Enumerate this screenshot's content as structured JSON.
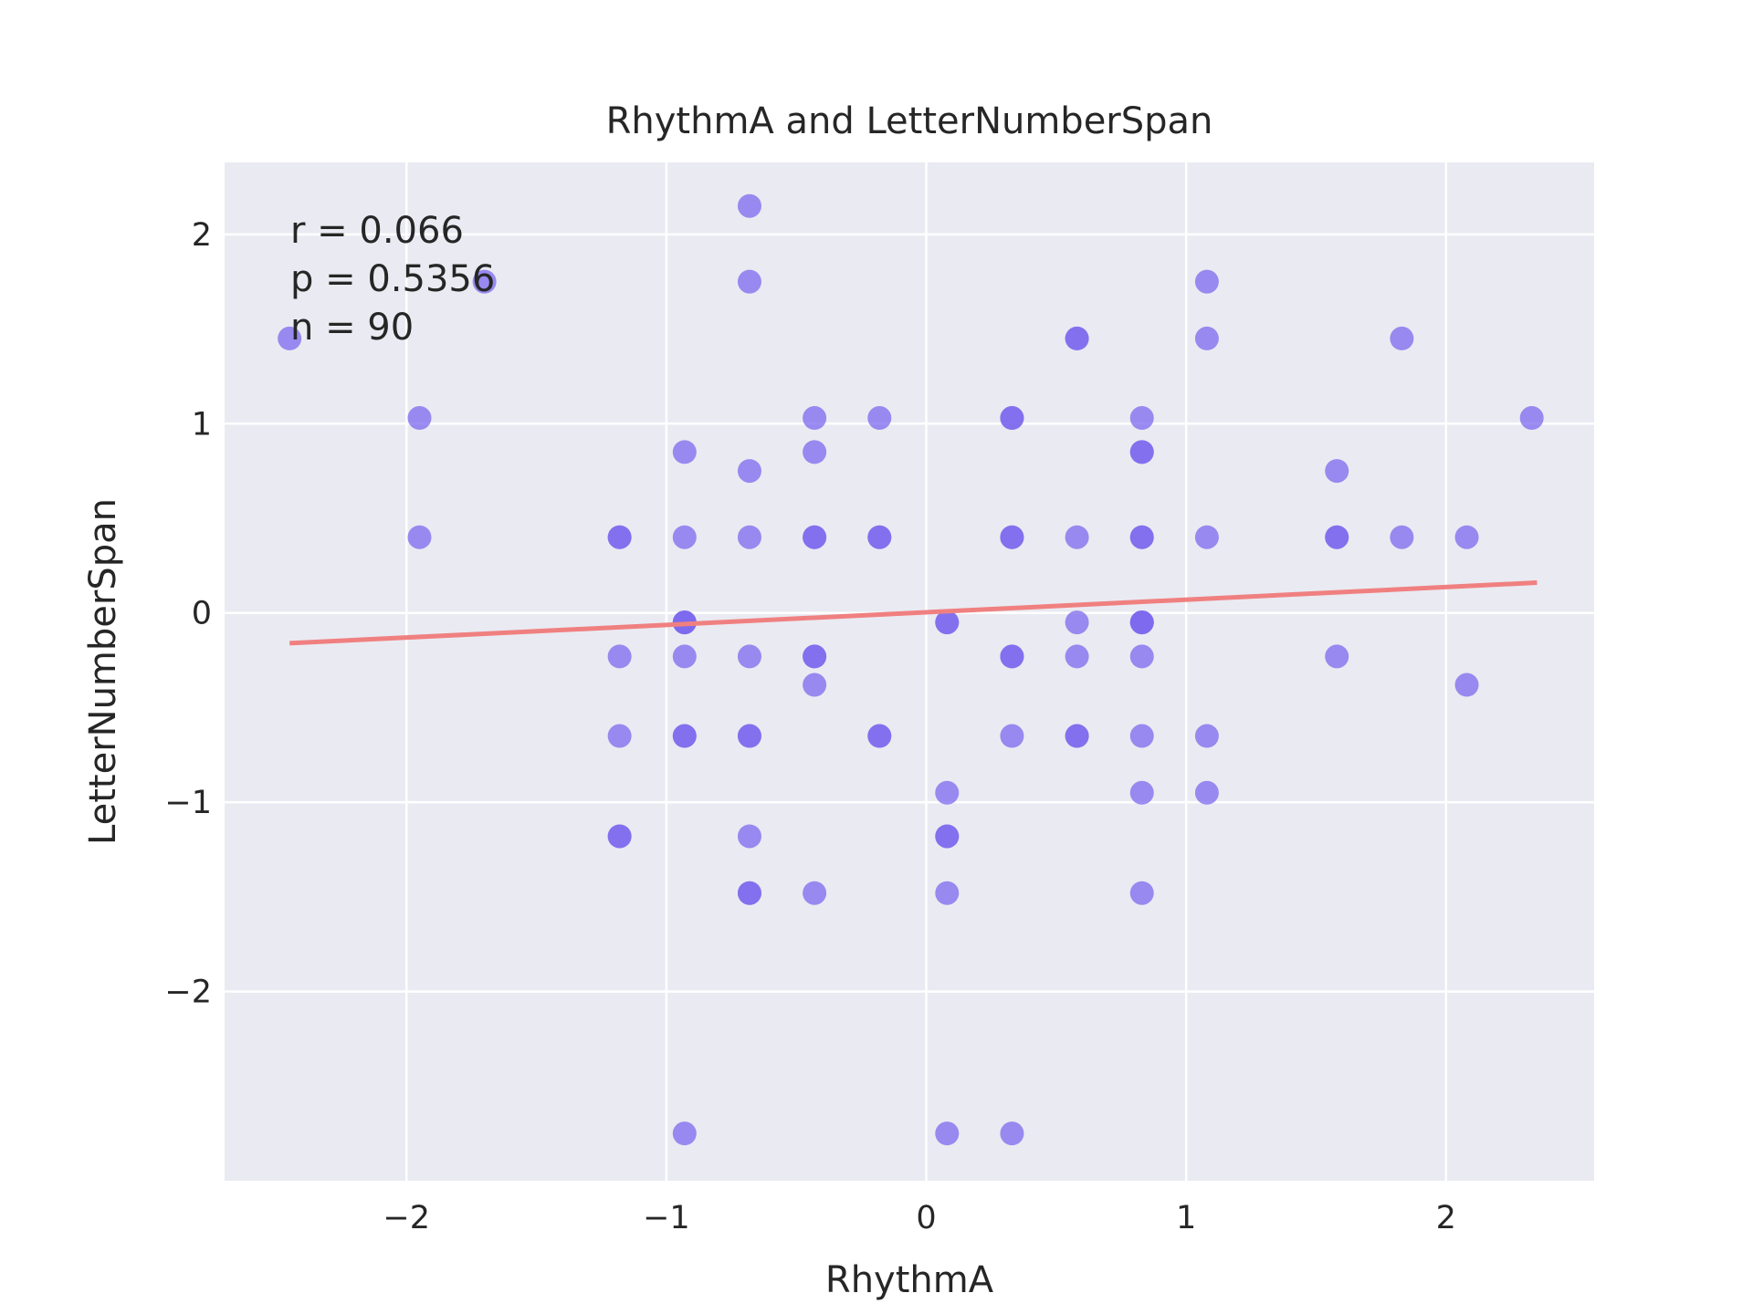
{
  "chart_data": {
    "type": "scatter",
    "title": "RhythmA and LetterNumberSpan",
    "xlabel": "RhythmA",
    "ylabel": "LetterNumberSpan",
    "xlim": [
      -2.7,
      2.57
    ],
    "ylim": [
      -3.0,
      2.38
    ],
    "xticks": [
      -2,
      -1,
      0,
      1,
      2
    ],
    "yticks": [
      -2,
      -1,
      0,
      1,
      2
    ],
    "xtick_labels": [
      "−2",
      "−1",
      "0",
      "1",
      "2"
    ],
    "ytick_labels": [
      "−2",
      "−1",
      "0",
      "1",
      "2"
    ],
    "grid": true,
    "point_color": "#7b68ee",
    "fit_color": "#f08080",
    "background_color": "#eaeaf2",
    "annotations": [
      "r = 0.066",
      "p = 0.5356",
      "n = 90"
    ],
    "fit_line": {
      "x": [
        -2.45,
        2.35
      ],
      "y": [
        -0.16,
        0.16
      ]
    },
    "points": {
      "x": [
        -2.45,
        -1.7,
        -1.95,
        -1.95,
        -0.68,
        -0.68,
        -0.93,
        -0.68,
        -0.43,
        -0.43,
        -0.18,
        -1.18,
        -1.18,
        -0.93,
        -0.68,
        -0.43,
        -0.43,
        -0.18,
        -0.18,
        -0.93,
        -0.93,
        -1.18,
        -0.93,
        -0.68,
        -0.43,
        -0.43,
        -0.43,
        -1.18,
        -0.93,
        -0.93,
        -0.68,
        -0.68,
        -0.18,
        -0.18,
        -1.18,
        -1.18,
        -0.68,
        -0.68,
        -0.68,
        -0.43,
        -0.93,
        0.08,
        0.08,
        0.08,
        0.08,
        0.08,
        0.08,
        0.33,
        0.33,
        0.33,
        0.33,
        0.33,
        0.33,
        0.58,
        0.58,
        0.58,
        0.58,
        0.58,
        0.58,
        0.83,
        0.83,
        0.83,
        0.83,
        0.83,
        0.83,
        0.83,
        0.83,
        0.83,
        0.83,
        0.83,
        1.08,
        1.08,
        1.08,
        1.08,
        1.08,
        1.58,
        1.58,
        1.58,
        1.58,
        1.83,
        1.83,
        2.08,
        2.08,
        2.33,
        0.33,
        0.33,
        0.58,
        0.83,
        -0.93,
        0.08
      ],
      "y": [
        1.45,
        1.75,
        1.03,
        0.4,
        2.15,
        1.75,
        0.85,
        0.75,
        1.03,
        0.85,
        1.03,
        0.4,
        0.4,
        0.4,
        0.4,
        0.4,
        0.4,
        0.4,
        0.4,
        -0.05,
        -0.05,
        -0.23,
        -0.23,
        -0.23,
        -0.23,
        -0.23,
        -0.38,
        -0.65,
        -0.65,
        -0.65,
        -0.65,
        -0.65,
        -0.65,
        -0.65,
        -1.18,
        -1.18,
        -1.18,
        -1.48,
        -1.48,
        -1.48,
        -2.75,
        -0.05,
        -0.95,
        -1.18,
        -1.18,
        -1.48,
        -2.75,
        -2.75,
        1.03,
        1.03,
        0.4,
        -0.23,
        -0.23,
        1.45,
        1.45,
        0.4,
        -0.05,
        -0.23,
        -0.65,
        1.03,
        0.85,
        0.85,
        0.4,
        -0.05,
        -0.05,
        -0.23,
        -0.65,
        -0.95,
        -1.48,
        -0.05,
        1.75,
        1.45,
        0.4,
        -0.65,
        -0.95,
        0.75,
        0.4,
        0.4,
        -0.23,
        1.45,
        0.4,
        0.4,
        -0.38,
        1.03,
        -0.65,
        0.4,
        -0.65,
        0.4,
        -0.05,
        -0.05
      ]
    }
  }
}
